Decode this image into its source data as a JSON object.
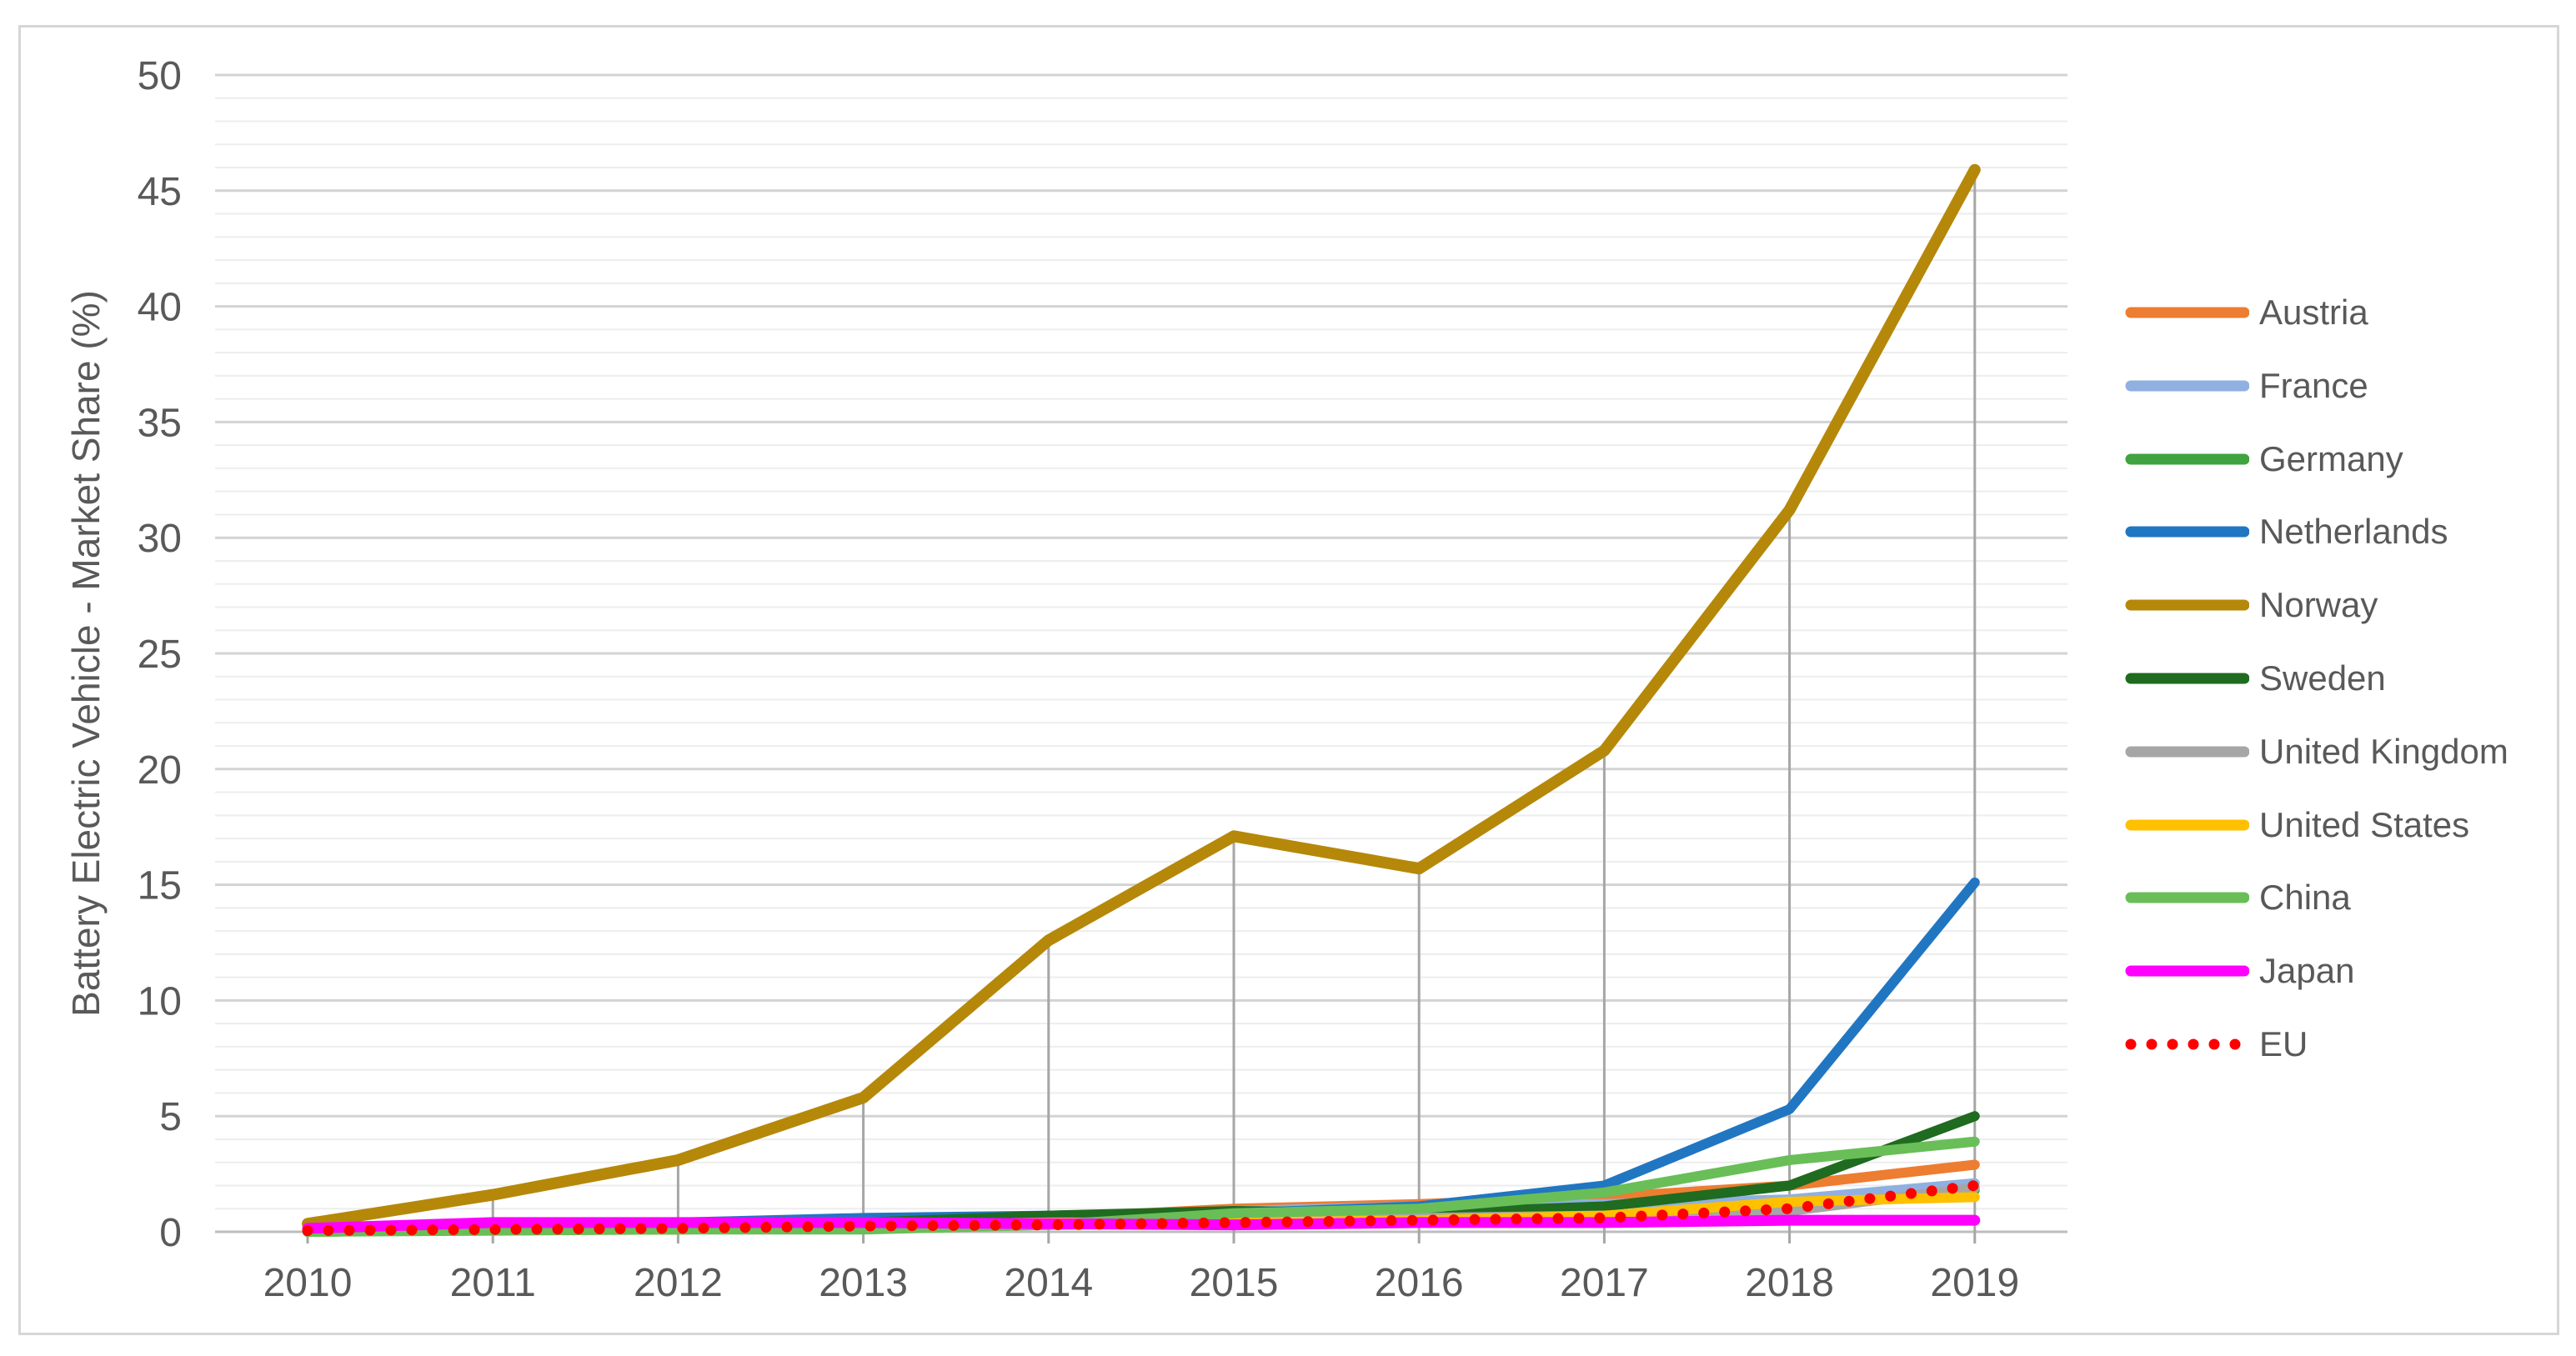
{
  "figure": {
    "background_color": "#ffffff",
    "border_color": "#d6d6d6"
  },
  "chart_data": {
    "type": "line",
    "ylabel": "Battery Electric Vehicle - Market Share (%)",
    "xlabel": "",
    "x": [
      2010,
      2011,
      2012,
      2013,
      2014,
      2015,
      2016,
      2017,
      2018,
      2019
    ],
    "x_tick_labels": [
      "2010",
      "2011",
      "2012",
      "2013",
      "2014",
      "2015",
      "2016",
      "2017",
      "2018",
      "2019"
    ],
    "y_ticks": [
      0,
      5,
      10,
      15,
      20,
      25,
      30,
      35,
      40,
      45,
      50
    ],
    "ylim": [
      0,
      50
    ],
    "grid": {
      "minor_step": 1,
      "major_step": 5,
      "minor_color": "#ededed",
      "major_color": "#d3d3d3"
    },
    "axis_line_color": "#bdbdbd",
    "drop_lines_series": "Norway",
    "drop_line_color": "#a6a6a6",
    "legend_position": "right",
    "series": [
      {
        "name": "Austria",
        "color": "#ED7D31",
        "style": "solid",
        "width": 12,
        "values": [
          0.0,
          0.2,
          0.2,
          0.4,
          0.6,
          1.0,
          1.2,
          1.5,
          2.0,
          2.9
        ]
      },
      {
        "name": "France",
        "color": "#8FB0E0",
        "style": "solid",
        "width": 12,
        "values": [
          0.0,
          0.1,
          0.3,
          0.5,
          0.6,
          0.9,
          1.1,
          1.2,
          1.4,
          2.1
        ]
      },
      {
        "name": "Germany",
        "color": "#3FA33F",
        "style": "solid",
        "width": 12,
        "values": [
          0.0,
          0.1,
          0.1,
          0.2,
          0.3,
          0.4,
          0.4,
          0.7,
          1.0,
          1.8
        ]
      },
      {
        "name": "Netherlands",
        "color": "#2176C2",
        "style": "solid",
        "width": 12,
        "values": [
          0.0,
          0.2,
          0.4,
          0.6,
          0.7,
          0.8,
          1.1,
          2.0,
          5.3,
          15.1
        ]
      },
      {
        "name": "Norway",
        "color": "#B5880A",
        "style": "solid",
        "width": 14,
        "values": [
          0.35,
          1.6,
          3.1,
          5.8,
          12.6,
          17.1,
          15.7,
          20.8,
          31.2,
          45.9
        ]
      },
      {
        "name": "Sweden",
        "color": "#1F6B1F",
        "style": "solid",
        "width": 12,
        "values": [
          0.0,
          0.1,
          0.3,
          0.4,
          0.7,
          0.9,
          0.8,
          1.1,
          2.0,
          5.0
        ]
      },
      {
        "name": "United Kingdom",
        "color": "#A6A6A6",
        "style": "solid",
        "width": 12,
        "values": [
          0.0,
          0.1,
          0.1,
          0.2,
          0.3,
          0.5,
          0.6,
          0.7,
          0.9,
          1.9
        ]
      },
      {
        "name": "United States",
        "color": "#FFC000",
        "style": "solid",
        "width": 12,
        "values": [
          0.0,
          0.1,
          0.1,
          0.3,
          0.4,
          0.4,
          0.5,
          0.7,
          1.3,
          1.5
        ]
      },
      {
        "name": "China",
        "color": "#69BE58",
        "style": "solid",
        "width": 12,
        "values": [
          0.0,
          0.05,
          0.1,
          0.1,
          0.3,
          0.8,
          1.0,
          1.7,
          3.1,
          3.9
        ]
      },
      {
        "name": "Japan",
        "color": "#FF00FF",
        "style": "solid",
        "width": 13,
        "values": [
          0.15,
          0.4,
          0.4,
          0.4,
          0.35,
          0.3,
          0.4,
          0.4,
          0.5,
          0.5
        ]
      },
      {
        "name": "EU",
        "color": "#FF0000",
        "style": "dotted",
        "width": 13,
        "values": [
          0.05,
          0.1,
          0.15,
          0.25,
          0.3,
          0.4,
          0.5,
          0.6,
          1.0,
          2.0
        ]
      }
    ]
  }
}
